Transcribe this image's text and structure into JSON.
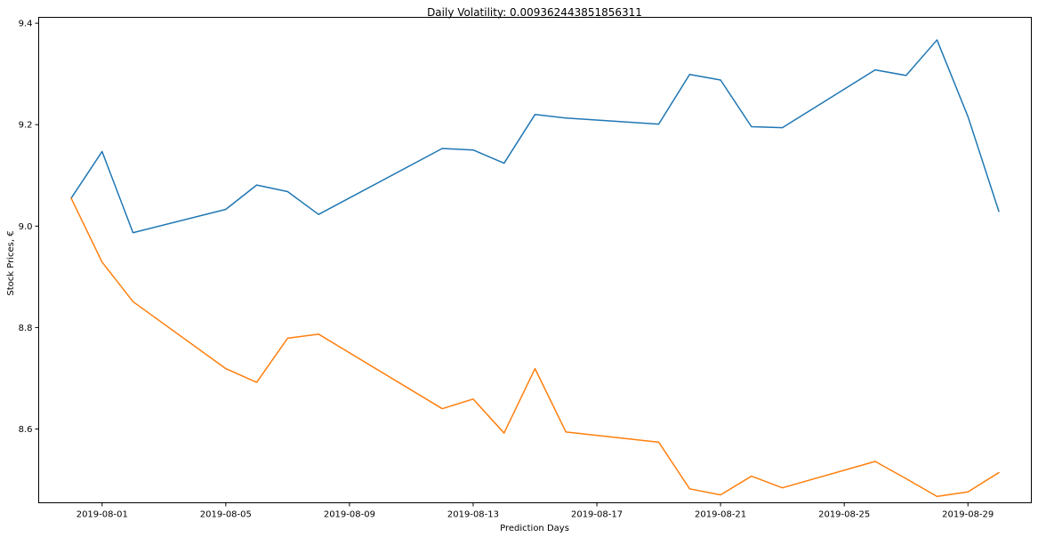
{
  "chart_data": {
    "type": "line",
    "title": "Daily Volatility: 0.009362443851856311",
    "xlabel": "Prediction Days",
    "ylabel": "Stock Prices, €",
    "x": [
      "2019-07-31",
      "2019-08-01",
      "2019-08-02",
      "2019-08-05",
      "2019-08-06",
      "2019-08-07",
      "2019-08-08",
      "2019-08-12",
      "2019-08-13",
      "2019-08-14",
      "2019-08-15",
      "2019-08-16",
      "2019-08-19",
      "2019-08-20",
      "2019-08-21",
      "2019-08-22",
      "2019-08-23",
      "2019-08-26",
      "2019-08-27",
      "2019-08-28",
      "2019-08-29",
      "2019-08-30"
    ],
    "series": [
      {
        "color": "#1f77b4",
        "values": [
          9.055,
          9.147,
          8.987,
          9.033,
          9.081,
          9.068,
          9.023,
          9.153,
          9.15,
          9.124,
          9.22,
          9.213,
          9.201,
          9.299,
          9.288,
          9.196,
          9.194,
          9.308,
          9.297,
          9.367,
          9.216,
          9.029
        ]
      },
      {
        "color": "#ff7f0e",
        "values": [
          9.055,
          8.929,
          8.851,
          8.719,
          8.692,
          8.779,
          8.787,
          8.64,
          8.659,
          8.592,
          8.719,
          8.594,
          8.574,
          8.482,
          8.47,
          8.507,
          8.484,
          8.536,
          8.502,
          8.467,
          8.476,
          8.514
        ]
      }
    ],
    "x_ticks": [
      "2019-08-01",
      "2019-08-05",
      "2019-08-09",
      "2019-08-13",
      "2019-08-17",
      "2019-08-21",
      "2019-08-25",
      "2019-08-29"
    ],
    "xlim": [
      "2019-07-29 22:48",
      "2019-08-31 01:12"
    ],
    "y_ticks": [
      9.0,
      9.2,
      9.4,
      8.6,
      8.8
    ],
    "y_tick_labels": [
      "9.0",
      "9.2",
      "9.4",
      "8.6",
      "8.8"
    ],
    "ylim": [
      8.4545,
      9.4116
    ],
    "grid": false,
    "legend": "none"
  }
}
